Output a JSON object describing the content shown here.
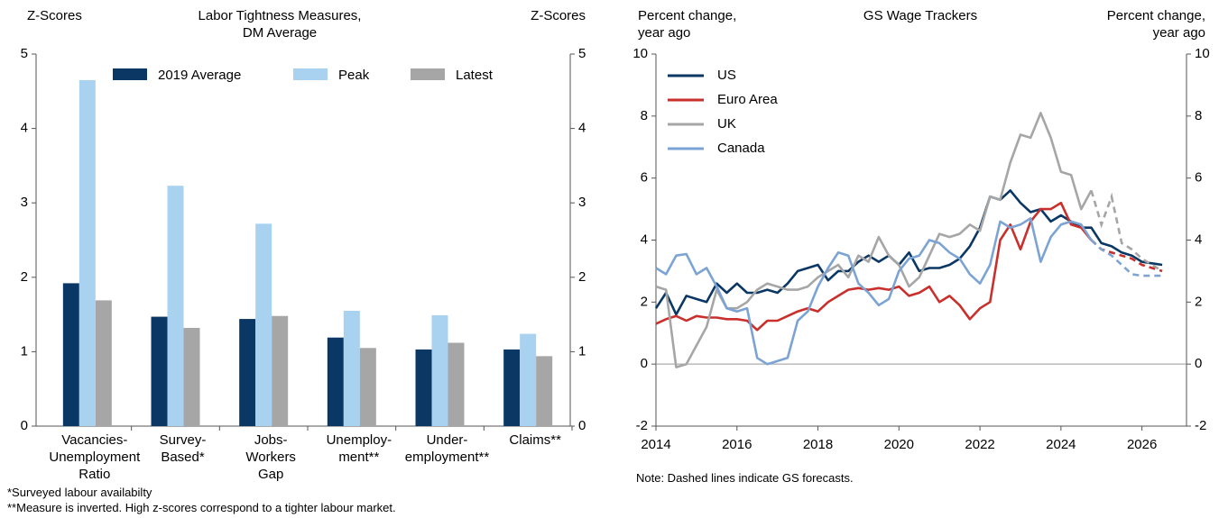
{
  "chart_data": [
    {
      "type": "bar",
      "title": "Labor Tightness Measures,\nDM Average",
      "ylabel": "Z-Scores",
      "y2label": "Z-Scores",
      "categories": [
        "Vacancies-\nUnemployment\nRatio",
        "Survey-\nBased*",
        "Jobs-\nWorkers\nGap",
        "Unemploy-\nment**",
        "Under-\nemployment**",
        "Claims**"
      ],
      "series": [
        {
          "name": "2019 Average",
          "color": "#0b3764",
          "values": [
            1.92,
            1.47,
            1.44,
            1.19,
            1.03,
            1.03
          ]
        },
        {
          "name": "Peak",
          "color": "#a9d2f0",
          "values": [
            4.65,
            3.23,
            2.72,
            1.55,
            1.49,
            1.24
          ]
        },
        {
          "name": "Latest",
          "color": "#a6a6a6",
          "values": [
            1.69,
            1.32,
            1.48,
            1.05,
            1.12,
            0.94
          ]
        }
      ],
      "ylim": [
        0,
        5
      ],
      "yticks": [
        0,
        1,
        2,
        3,
        4,
        5
      ],
      "y2lim": [
        0,
        5
      ],
      "y2ticks": [
        0,
        1,
        2,
        3,
        4,
        5
      ],
      "legend": "top",
      "notes": [
        "*Surveyed labour availabilty",
        "**Measure is inverted. High z-scores correspond to a tighter labour market."
      ]
    },
    {
      "type": "line",
      "title": "GS Wage Trackers",
      "ylabel": "Percent change,\nyear ago",
      "y2label": "Percent change,\nyear ago",
      "x": [
        2014,
        2014.25,
        2014.5,
        2014.75,
        2015,
        2015.25,
        2015.5,
        2015.75,
        2016,
        2016.25,
        2016.5,
        2016.75,
        2017,
        2017.25,
        2017.5,
        2017.75,
        2018,
        2018.25,
        2018.5,
        2018.75,
        2019,
        2019.25,
        2019.5,
        2019.75,
        2020,
        2020.25,
        2020.5,
        2020.75,
        2021,
        2021.25,
        2021.5,
        2021.75,
        2022,
        2022.25,
        2022.5,
        2022.75,
        2023,
        2023.25,
        2023.5,
        2023.75,
        2024,
        2024.25,
        2024.5,
        2024.75,
        2025,
        2025.25,
        2025.5,
        2025.75,
        2026,
        2026.25,
        2026.5
      ],
      "series": [
        {
          "name": "US",
          "color": "#0b3764",
          "values": [
            1.8,
            2.3,
            1.6,
            2.2,
            2.1,
            2.0,
            2.6,
            2.3,
            2.6,
            2.3,
            2.3,
            2.4,
            2.3,
            2.6,
            3.0,
            3.1,
            3.2,
            2.7,
            3.0,
            3.0,
            3.3,
            3.5,
            3.3,
            3.5,
            3.2,
            3.6,
            3.0,
            3.1,
            3.1,
            3.2,
            3.4,
            3.8,
            4.4,
            5.4,
            5.3,
            5.6,
            5.2,
            4.9,
            5.0,
            4.6,
            4.8,
            4.6,
            4.4,
            4.4,
            3.9,
            3.8,
            3.6,
            3.5,
            3.3,
            3.25,
            3.2
          ]
        },
        {
          "name": "Euro Area",
          "color": "#c9302c",
          "values": [
            1.3,
            1.45,
            1.55,
            1.4,
            1.55,
            1.5,
            1.5,
            1.45,
            1.45,
            1.4,
            1.1,
            1.4,
            1.4,
            1.55,
            1.7,
            1.8,
            1.7,
            2.0,
            2.2,
            2.4,
            2.45,
            2.4,
            2.45,
            2.4,
            2.5,
            2.2,
            2.3,
            2.5,
            2.0,
            2.2,
            1.9,
            1.45,
            1.8,
            2.0,
            4.0,
            4.5,
            3.7,
            4.6,
            5.0,
            5.0,
            5.2,
            4.5,
            4.4,
            4.0,
            null,
            null,
            null,
            null,
            null,
            null,
            null
          ],
          "forecast": [
            null,
            null,
            null,
            null,
            null,
            null,
            null,
            null,
            null,
            null,
            null,
            null,
            null,
            null,
            null,
            null,
            null,
            null,
            null,
            null,
            null,
            null,
            null,
            null,
            null,
            null,
            null,
            null,
            null,
            null,
            null,
            null,
            null,
            null,
            null,
            null,
            null,
            null,
            null,
            null,
            null,
            null,
            null,
            4.0,
            3.7,
            3.6,
            3.5,
            3.4,
            3.2,
            3.1,
            3.0
          ]
        },
        {
          "name": "UK",
          "color": "#a6a6a6",
          "values": [
            2.5,
            2.4,
            -0.1,
            0.0,
            0.6,
            1.2,
            2.4,
            1.8,
            1.8,
            2.0,
            2.4,
            2.6,
            2.5,
            2.4,
            2.4,
            2.5,
            2.8,
            3.0,
            3.2,
            2.8,
            3.5,
            3.3,
            4.1,
            3.5,
            3.2,
            2.5,
            2.8,
            3.5,
            4.2,
            4.1,
            4.2,
            4.5,
            4.3,
            5.4,
            5.3,
            6.5,
            7.4,
            7.3,
            8.1,
            7.3,
            6.2,
            6.1,
            5.0,
            5.6,
            null,
            null,
            null,
            null,
            null,
            null,
            null
          ],
          "forecast": [
            null,
            null,
            null,
            null,
            null,
            null,
            null,
            null,
            null,
            null,
            null,
            null,
            null,
            null,
            null,
            null,
            null,
            null,
            null,
            null,
            null,
            null,
            null,
            null,
            null,
            null,
            null,
            null,
            null,
            null,
            null,
            null,
            null,
            null,
            null,
            null,
            null,
            null,
            null,
            null,
            null,
            null,
            null,
            5.6,
            4.5,
            5.4,
            3.9,
            3.7,
            3.4,
            3.2,
            3.0
          ]
        },
        {
          "name": "Canada",
          "color": "#7ba3d4",
          "values": [
            3.1,
            2.9,
            3.5,
            3.55,
            2.9,
            3.1,
            2.5,
            1.8,
            1.7,
            1.8,
            0.2,
            0.0,
            0.1,
            0.2,
            1.4,
            1.7,
            2.5,
            3.1,
            3.6,
            3.5,
            2.6,
            2.3,
            1.9,
            2.1,
            3.0,
            3.4,
            3.5,
            4.0,
            3.9,
            3.6,
            3.4,
            2.9,
            2.6,
            3.2,
            4.6,
            4.4,
            4.5,
            4.7,
            3.3,
            4.1,
            4.5,
            4.6,
            4.5,
            4.0,
            null,
            null,
            null,
            null,
            null,
            null,
            null
          ],
          "forecast": [
            null,
            null,
            null,
            null,
            null,
            null,
            null,
            null,
            null,
            null,
            null,
            null,
            null,
            null,
            null,
            null,
            null,
            null,
            null,
            null,
            null,
            null,
            null,
            null,
            null,
            null,
            null,
            null,
            null,
            null,
            null,
            null,
            null,
            null,
            null,
            null,
            null,
            null,
            null,
            null,
            null,
            null,
            null,
            4.0,
            3.7,
            3.5,
            3.2,
            2.9,
            2.85,
            2.85,
            2.85
          ]
        }
      ],
      "xlim": [
        2014,
        2027.1
      ],
      "xticks": [
        2014,
        2016,
        2018,
        2020,
        2022,
        2024,
        2026
      ],
      "ylim": [
        -2,
        10
      ],
      "yticks": [
        -2,
        0,
        2,
        4,
        6,
        8,
        10
      ],
      "y2lim": [
        -2,
        10
      ],
      "y2ticks": [
        -2,
        0,
        2,
        4,
        6,
        8,
        10
      ],
      "legend": "upper left",
      "notes": [
        "Note: Dashed lines indicate GS forecasts."
      ]
    }
  ]
}
